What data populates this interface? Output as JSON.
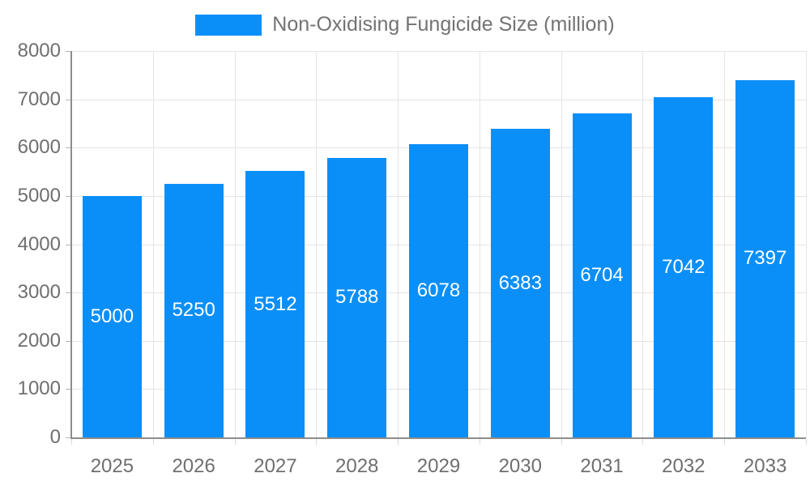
{
  "legend": {
    "label": "Non-Oxidising Fungicide Size (million)"
  },
  "colors": {
    "bar": "#0a8ff8",
    "grid": "#e4e4e4",
    "axis": "#8d8d8d",
    "axis_text": "#6f6f6f",
    "legend_text": "#737373",
    "bar_label_text": "#ffffff",
    "background": "#ffffff"
  },
  "chart_data": {
    "type": "bar",
    "title": "Non-Oxidising Fungicide Size (million)",
    "categories": [
      "2025",
      "2026",
      "2027",
      "2028",
      "2029",
      "2030",
      "2031",
      "2032",
      "2033"
    ],
    "values": [
      5000,
      5250,
      5512,
      5788,
      6078,
      6383,
      6704,
      7042,
      7397
    ],
    "xlabel": "",
    "ylabel": "",
    "ylim": [
      0,
      8000
    ],
    "yticks": [
      0,
      1000,
      2000,
      3000,
      4000,
      5000,
      6000,
      7000,
      8000
    ],
    "grid": true,
    "legend_position": "top",
    "value_labels": "inside-center"
  }
}
